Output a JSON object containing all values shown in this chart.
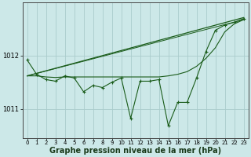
{
  "background_color": "#cce8e8",
  "grid_color": "#aacccc",
  "line_color": "#1a5c1a",
  "xlabel": "Graphe pression niveau de la mer (hPa)",
  "xlabel_fontsize": 7,
  "xlim": [
    -0.5,
    23.5
  ],
  "ylim": [
    1010.45,
    1013.0
  ],
  "yticks": [
    1011,
    1012
  ],
  "xticks": [
    0,
    1,
    2,
    3,
    4,
    5,
    6,
    7,
    8,
    9,
    10,
    11,
    12,
    13,
    14,
    15,
    16,
    17,
    18,
    19,
    20,
    21,
    22,
    23
  ],
  "trend_line": {
    "x": [
      0,
      23
    ],
    "y": [
      1011.62,
      1012.72
    ]
  },
  "trend_line2": {
    "x": [
      0,
      23
    ],
    "y": [
      1011.62,
      1012.68
    ]
  },
  "smooth_line": {
    "x": [
      0,
      1,
      2,
      3,
      4,
      5,
      6,
      7,
      8,
      9,
      10,
      11,
      12,
      13,
      14,
      15,
      16,
      17,
      18,
      19,
      20,
      21,
      22,
      23
    ],
    "y": [
      1011.62,
      1011.62,
      1011.6,
      1011.59,
      1011.6,
      1011.6,
      1011.6,
      1011.6,
      1011.6,
      1011.6,
      1011.6,
      1011.6,
      1011.6,
      1011.6,
      1011.6,
      1011.62,
      1011.65,
      1011.7,
      1011.8,
      1011.95,
      1012.15,
      1012.45,
      1012.6,
      1012.68
    ]
  },
  "main_line": {
    "x": [
      0,
      1,
      2,
      3,
      4,
      5,
      6,
      7,
      8,
      9,
      10,
      11,
      12,
      13,
      14,
      15,
      16,
      17,
      18,
      19,
      20,
      21,
      22,
      23
    ],
    "y": [
      1011.92,
      1011.65,
      1011.55,
      1011.52,
      1011.62,
      1011.58,
      1011.32,
      1011.44,
      1011.4,
      1011.5,
      1011.58,
      1010.82,
      1011.52,
      1011.52,
      1011.55,
      1010.68,
      1011.12,
      1011.12,
      1011.58,
      1012.08,
      1012.48,
      1012.58,
      1012.63,
      1012.7
    ]
  }
}
